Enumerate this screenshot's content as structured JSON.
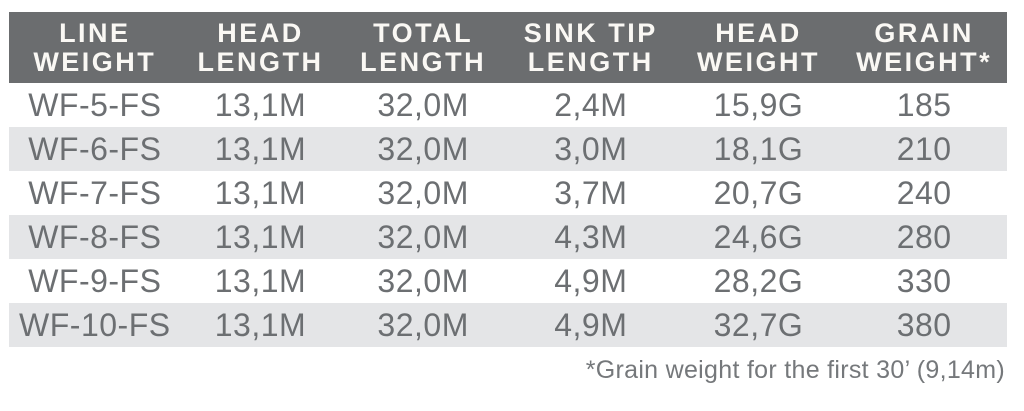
{
  "colors": {
    "page_bg": "#ffffff",
    "header_bg": "#6b6d6f",
    "header_text": "#faf8f4",
    "cell_text": "#6c6f72",
    "row_stripe": "#e4e5e7",
    "footnote_text": "#75787b"
  },
  "chart_data": {
    "type": "table",
    "columns": [
      "LINE\nWEIGHT",
      "HEAD\nLENGTH",
      "TOTAL\nLENGTH",
      "SINK TIP\nLENGTH",
      "HEAD\nWEIGHT",
      "GRAIN\nWEIGHT*"
    ],
    "rows": [
      [
        "WF-5-FS",
        "13,1M",
        "32,0M",
        "2,4M",
        "15,9G",
        "185"
      ],
      [
        "WF-6-FS",
        "13,1M",
        "32,0M",
        "3,0M",
        "18,1G",
        "210"
      ],
      [
        "WF-7-FS",
        "13,1M",
        "32,0M",
        "3,7M",
        "20,7G",
        "240"
      ],
      [
        "WF-8-FS",
        "13,1M",
        "32,0M",
        "4,3M",
        "24,6G",
        "280"
      ],
      [
        "WF-9-FS",
        "13,1M",
        "32,0M",
        "4,9M",
        "28,2G",
        "330"
      ],
      [
        "WF-10-FS",
        "13,1M",
        "32,0M",
        "4,9M",
        "32,7G",
        "380"
      ]
    ],
    "footnote": "*Grain weight for the first 30’ (9,14m)"
  }
}
